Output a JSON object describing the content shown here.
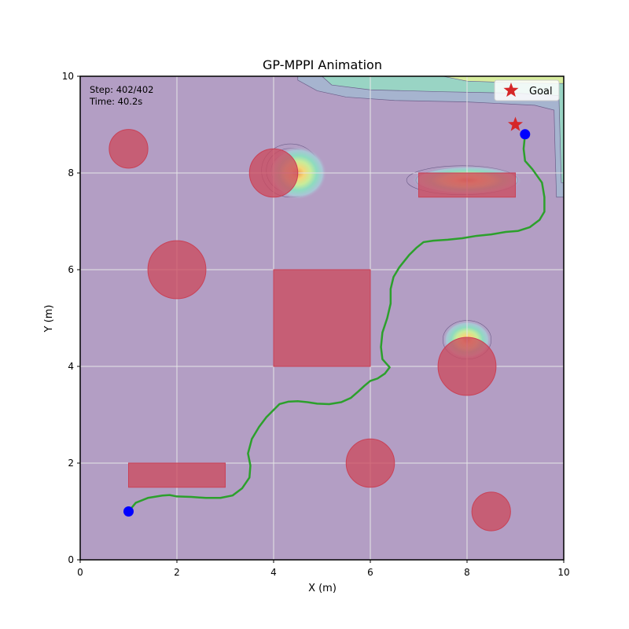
{
  "chart_data": {
    "type": "scatter",
    "title": "GP-MPPI Animation",
    "xlabel": "X (m)",
    "ylabel": "Y (m)",
    "xlim": [
      0,
      10
    ],
    "ylim": [
      0,
      10
    ],
    "xticks": [
      "0",
      "2",
      "4",
      "6",
      "8",
      "10"
    ],
    "yticks": [
      "0",
      "2",
      "4",
      "6",
      "8",
      "10"
    ],
    "grid": true,
    "info": {
      "step": "Step: 402/402",
      "time": "Time: 40.2s"
    },
    "legend": {
      "placement": "top-right",
      "entries": [
        {
          "label": "Goal",
          "marker": "star",
          "color": "#d62728"
        }
      ]
    },
    "colors": {
      "background": "#b39ec4",
      "obstacle": "#cc4c5f",
      "trajectory": "#2ca02c",
      "robot": "#0000ff",
      "goal": "#d62728",
      "grid": "#e6e6e6"
    },
    "circle_obstacles": [
      {
        "x": 1.0,
        "y": 8.5,
        "r": 0.4
      },
      {
        "x": 4.0,
        "y": 8.0,
        "r": 0.5
      },
      {
        "x": 2.0,
        "y": 6.0,
        "r": 0.6
      },
      {
        "x": 8.0,
        "y": 4.0,
        "r": 0.6
      },
      {
        "x": 6.0,
        "y": 2.0,
        "r": 0.5
      },
      {
        "x": 8.5,
        "y": 1.0,
        "r": 0.4
      }
    ],
    "rect_obstacles": [
      {
        "x0": 4.0,
        "y0": 4.0,
        "x1": 6.0,
        "y1": 6.0
      },
      {
        "x0": 1.0,
        "y0": 1.5,
        "x1": 3.0,
        "y1": 2.0
      },
      {
        "x0": 7.0,
        "y0": 7.5,
        "x1": 9.0,
        "y1": 8.0
      }
    ],
    "gp_regions": [
      {
        "cx": 4.35,
        "cy": 8.05,
        "rx": 0.6,
        "ry": 0.55,
        "peak_x": 4.5,
        "peak_y": 8.0
      },
      {
        "cx": 7.9,
        "cy": 7.85,
        "rx": 1.15,
        "ry": 0.3,
        "peak_x": 8.0,
        "peak_y": 7.85
      },
      {
        "cx": 8.0,
        "cy": 4.55,
        "rx": 0.5,
        "ry": 0.4,
        "peak_x": 8.0,
        "peak_y": 4.55
      }
    ],
    "gp_boundary": {
      "top_band": [
        [
          4.5,
          10.0
        ],
        [
          4.5,
          9.92
        ],
        [
          4.9,
          9.7
        ],
        [
          5.5,
          9.57
        ],
        [
          6.5,
          9.5
        ],
        [
          8.0,
          9.47
        ],
        [
          9.4,
          9.4
        ],
        [
          9.8,
          9.3
        ],
        [
          9.82,
          8.5
        ],
        [
          9.85,
          7.5
        ],
        [
          10.0,
          7.5
        ],
        [
          10.0,
          10.0
        ]
      ],
      "top_band_inner": [
        [
          5.0,
          10.0
        ],
        [
          5.2,
          9.82
        ],
        [
          6.0,
          9.72
        ],
        [
          7.5,
          9.68
        ],
        [
          9.0,
          9.65
        ],
        [
          9.9,
          9.6
        ],
        [
          9.95,
          7.8
        ],
        [
          10.0,
          7.8
        ],
        [
          10.0,
          10.0
        ]
      ],
      "top_band_core": [
        [
          7.5,
          10.0
        ],
        [
          8.0,
          9.9
        ],
        [
          9.2,
          9.86
        ],
        [
          9.97,
          9.85
        ],
        [
          10.0,
          9.85
        ],
        [
          10.0,
          10.0
        ]
      ]
    },
    "trajectory": [
      [
        1.0,
        1.0
      ],
      [
        1.15,
        1.18
      ],
      [
        1.4,
        1.28
      ],
      [
        1.7,
        1.33
      ],
      [
        1.85,
        1.34
      ],
      [
        2.0,
        1.31
      ],
      [
        2.3,
        1.3
      ],
      [
        2.6,
        1.28
      ],
      [
        2.9,
        1.28
      ],
      [
        3.15,
        1.33
      ],
      [
        3.35,
        1.48
      ],
      [
        3.5,
        1.7
      ],
      [
        3.52,
        1.95
      ],
      [
        3.47,
        2.2
      ],
      [
        3.55,
        2.5
      ],
      [
        3.7,
        2.75
      ],
      [
        3.85,
        2.95
      ],
      [
        4.0,
        3.1
      ],
      [
        4.12,
        3.22
      ],
      [
        4.3,
        3.27
      ],
      [
        4.5,
        3.28
      ],
      [
        4.7,
        3.26
      ],
      [
        4.9,
        3.23
      ],
      [
        5.15,
        3.22
      ],
      [
        5.4,
        3.26
      ],
      [
        5.6,
        3.35
      ],
      [
        5.75,
        3.48
      ],
      [
        5.88,
        3.6
      ],
      [
        6.0,
        3.7
      ],
      [
        6.15,
        3.75
      ],
      [
        6.3,
        3.85
      ],
      [
        6.4,
        3.98
      ],
      [
        6.25,
        4.15
      ],
      [
        6.22,
        4.4
      ],
      [
        6.25,
        4.7
      ],
      [
        6.35,
        5.0
      ],
      [
        6.42,
        5.3
      ],
      [
        6.42,
        5.6
      ],
      [
        6.48,
        5.85
      ],
      [
        6.6,
        6.05
      ],
      [
        6.8,
        6.3
      ],
      [
        6.95,
        6.45
      ],
      [
        7.1,
        6.57
      ],
      [
        7.3,
        6.6
      ],
      [
        7.6,
        6.62
      ],
      [
        7.9,
        6.65
      ],
      [
        8.2,
        6.7
      ],
      [
        8.5,
        6.73
      ],
      [
        8.8,
        6.78
      ],
      [
        9.05,
        6.8
      ],
      [
        9.3,
        6.88
      ],
      [
        9.5,
        7.03
      ],
      [
        9.6,
        7.2
      ],
      [
        9.6,
        7.5
      ],
      [
        9.55,
        7.8
      ],
      [
        9.35,
        8.08
      ],
      [
        9.2,
        8.25
      ],
      [
        9.17,
        8.5
      ],
      [
        9.2,
        8.8
      ]
    ],
    "robot_start": [
      1.0,
      1.0
    ],
    "robot_current": [
      9.2,
      8.8
    ],
    "goal": [
      9.0,
      9.0
    ]
  }
}
